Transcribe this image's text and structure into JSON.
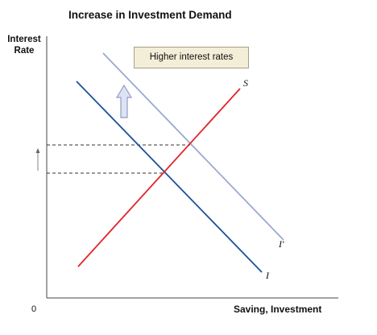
{
  "diagram": {
    "title": "Increase in Investment Demand",
    "y_axis_label_line1": "Interest",
    "y_axis_label_line2": "Rate",
    "x_axis_label": "Saving, Investment",
    "origin_label": "0",
    "callout_text": "Higher interest rates",
    "curves": {
      "saving": {
        "label": "S",
        "color": "#e0242a"
      },
      "investment_original": {
        "label": "I",
        "color": "#1f4f9e"
      },
      "investment_shifted": {
        "label": "I′",
        "color": "#9aa9cf"
      }
    },
    "colors": {
      "axis": "#444444",
      "guide_dashes": "#333333",
      "shift_arrow_fill": "#dde3f2",
      "shift_arrow_stroke": "#8f9cc8",
      "callout_background": "#f3eed8",
      "callout_border": "#a79f86"
    }
  }
}
